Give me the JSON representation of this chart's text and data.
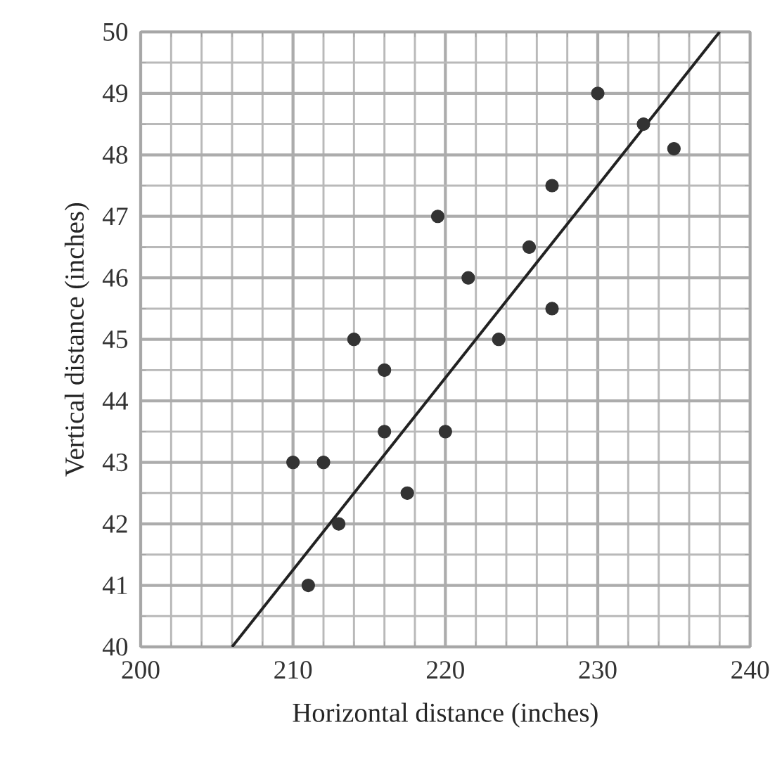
{
  "chart_data": {
    "type": "scatter",
    "xlabel": "Horizontal distance (inches)",
    "ylabel": "Vertical distance (inches)",
    "xlim": [
      200,
      240
    ],
    "ylim": [
      40,
      50
    ],
    "xticks": [
      200,
      210,
      220,
      230,
      240
    ],
    "yticks": [
      40,
      41,
      42,
      43,
      44,
      45,
      46,
      47,
      48,
      49,
      50
    ],
    "grid": true,
    "series": [
      {
        "marker": "circle",
        "color": "#333333",
        "x": [
          210,
          211,
          212,
          213,
          214,
          216,
          216,
          217.5,
          219.5,
          220,
          221.5,
          223.5,
          225.5,
          227,
          227,
          230,
          233,
          235
        ],
        "values": [
          43,
          41,
          43,
          42,
          45,
          44.5,
          43.5,
          42.5,
          47,
          43.5,
          46,
          45,
          46.5,
          45.5,
          47.5,
          49,
          48.5,
          48.1
        ]
      },
      {
        "type": "line",
        "marker": "none",
        "color": "#222222",
        "x": [
          206,
          238
        ],
        "values": [
          40,
          50
        ]
      }
    ]
  }
}
